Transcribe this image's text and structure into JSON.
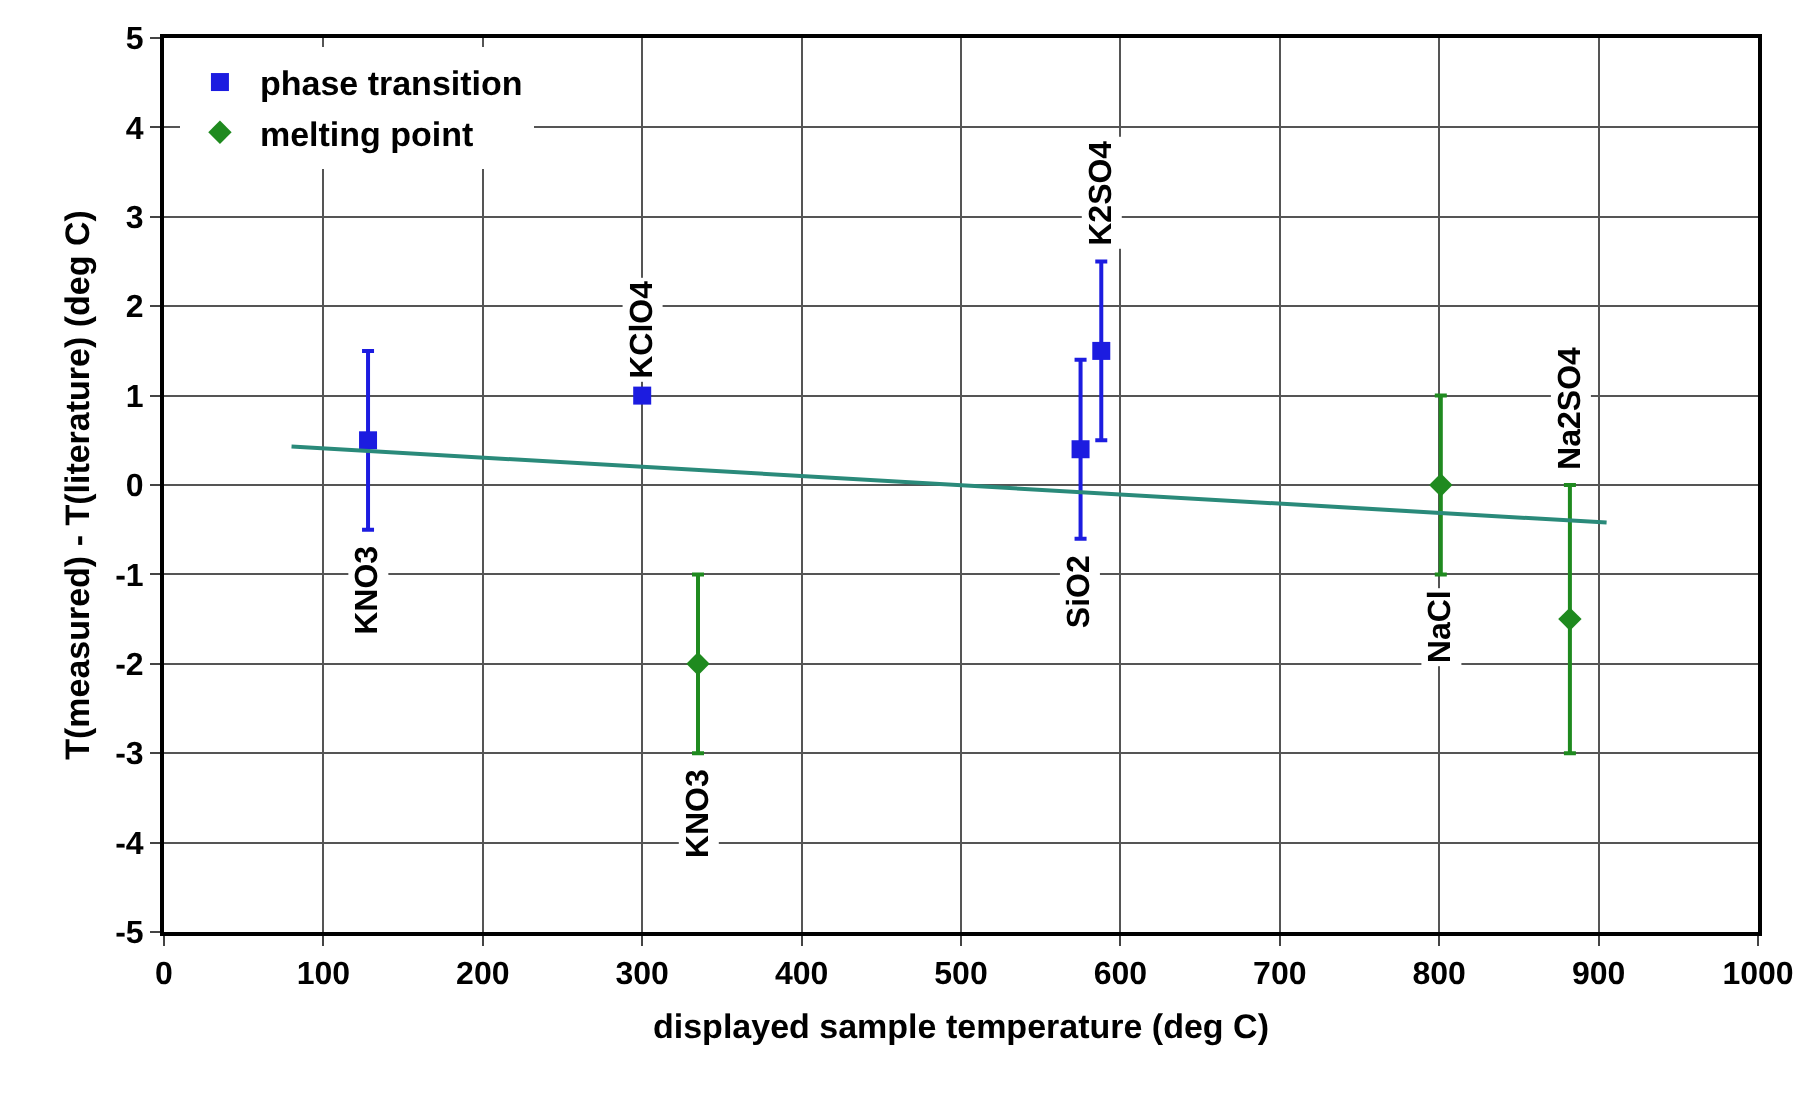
{
  "chart_data": {
    "type": "scatter",
    "xlabel": "displayed sample temperature (deg C)",
    "ylabel": "T(measured) - T(literature) (deg C)",
    "xlim": [
      0,
      1000
    ],
    "xticks": [
      0,
      100,
      200,
      300,
      400,
      500,
      600,
      700,
      800,
      900,
      1000
    ],
    "ylim": [
      -5,
      5
    ],
    "yticks": [
      -5,
      -4,
      -3,
      -2,
      -1,
      0,
      1,
      2,
      3,
      4,
      5
    ],
    "grid": true,
    "legend": "top left",
    "series": [
      {
        "name": "phase transition",
        "marker": "square",
        "color": "#1c1ce0",
        "x": [
          128,
          300,
          575,
          588
        ],
        "values": [
          0.5,
          1,
          0.4,
          1.5
        ],
        "errors": [
          1,
          null,
          1,
          1
        ]
      },
      {
        "name": "melting point",
        "marker": "diamond",
        "color": "#1f8a1f",
        "x": [
          335,
          801,
          882
        ],
        "values": [
          -2,
          0,
          -1.5
        ],
        "errors": [
          1,
          1,
          1.5
        ]
      },
      {
        "type": "line",
        "color": "#2a8a7a",
        "x": [
          80,
          905
        ],
        "values": [
          0.43,
          -0.42
        ]
      }
    ],
    "annotations": [
      {
        "text": "KNO3",
        "x": 128,
        "y": -0.5
      },
      {
        "text": "KClO4",
        "x": 300,
        "y": 1
      },
      {
        "text": "KNO3",
        "x": 335,
        "y": -3
      },
      {
        "text": "SiO2",
        "x": 575,
        "y": -0.6
      },
      {
        "text": "K2SO4",
        "x": 588,
        "y": 2.5
      },
      {
        "text": "NaCl",
        "x": 801,
        "y": -1
      },
      {
        "text": "Na2SO4",
        "x": 882,
        "y": 0
      }
    ]
  }
}
